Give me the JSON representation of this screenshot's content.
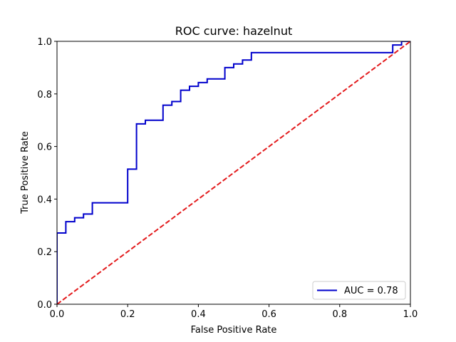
{
  "chart_data": {
    "type": "line",
    "title": "ROC curve: hazelnut",
    "xlabel": "False Positive Rate",
    "ylabel": "True Positive Rate",
    "xlim": [
      0,
      1
    ],
    "ylim": [
      0,
      1
    ],
    "xticks": [
      0.0,
      0.2,
      0.4,
      0.6,
      0.8,
      1.0
    ],
    "yticks": [
      0.0,
      0.2,
      0.4,
      0.6,
      0.8,
      1.0
    ],
    "xtick_labels": [
      "0.0",
      "0.2",
      "0.4",
      "0.6",
      "0.8",
      "1.0"
    ],
    "ytick_labels": [
      "0.0",
      "0.2",
      "0.4",
      "0.6",
      "0.8",
      "1.0"
    ],
    "grid": false,
    "legend_position": "bottom-right",
    "series": [
      {
        "name": "AUC = 0.78",
        "color": "#0000cc",
        "style": "solid",
        "x": [
          0.0,
          0.0,
          0.025,
          0.025,
          0.05,
          0.05,
          0.075,
          0.075,
          0.1,
          0.1,
          0.2,
          0.2,
          0.225,
          0.225,
          0.25,
          0.25,
          0.3,
          0.3,
          0.325,
          0.325,
          0.35,
          0.35,
          0.375,
          0.375,
          0.4,
          0.4,
          0.425,
          0.425,
          0.475,
          0.475,
          0.5,
          0.5,
          0.525,
          0.525,
          0.55,
          0.55,
          0.95,
          0.95,
          0.975,
          0.975,
          1.0
        ],
        "y": [
          0.0,
          0.271,
          0.271,
          0.314,
          0.314,
          0.329,
          0.329,
          0.343,
          0.343,
          0.386,
          0.386,
          0.514,
          0.514,
          0.686,
          0.686,
          0.7,
          0.7,
          0.757,
          0.757,
          0.771,
          0.771,
          0.814,
          0.814,
          0.829,
          0.829,
          0.843,
          0.843,
          0.857,
          0.857,
          0.9,
          0.9,
          0.914,
          0.914,
          0.929,
          0.929,
          0.957,
          0.957,
          0.986,
          0.986,
          1.0,
          1.0
        ]
      },
      {
        "name": "",
        "color": "#e31a1c",
        "style": "dashed",
        "x": [
          0,
          1
        ],
        "y": [
          0,
          1
        ]
      }
    ]
  }
}
